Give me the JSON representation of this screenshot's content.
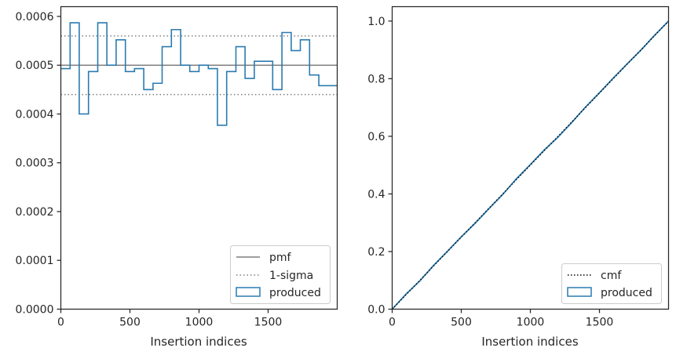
{
  "chart_data": [
    {
      "type": "histogram-step",
      "xlabel": "Insertion indices",
      "ylabel": "",
      "xlim": [
        0,
        2000
      ],
      "ylim": [
        0,
        0.00062
      ],
      "xticks": [
        0,
        500,
        1000,
        1500
      ],
      "yticks": [
        0.0,
        0.0001,
        0.0002,
        0.0003,
        0.0004,
        0.0005,
        0.0006
      ],
      "ytick_labels": [
        "0.0000",
        "0.0001",
        "0.0002",
        "0.0003",
        "0.0004",
        "0.0005",
        "0.0006"
      ],
      "bin_edges": [
        0,
        67,
        133,
        200,
        267,
        333,
        400,
        467,
        533,
        600,
        667,
        733,
        800,
        867,
        933,
        1000,
        1067,
        1133,
        1200,
        1267,
        1333,
        1400,
        1467,
        1533,
        1600,
        1667,
        1733,
        1800,
        1867,
        1933,
        2000
      ],
      "series": [
        {
          "name": "pmf",
          "style": "solid",
          "color": "#7f7f7f",
          "value": 0.0005
        },
        {
          "name": "1-sigma",
          "style": "dotted",
          "color": "#7f7f7f",
          "values": [
            0.00044,
            0.00056
          ]
        },
        {
          "name": "produced",
          "style": "step",
          "color": "#2b7bb0",
          "values": [
            0.000493,
            0.000587,
            0.0004,
            0.000487,
            0.000587,
            0.0005,
            0.000552,
            0.000487,
            0.000493,
            0.00045,
            0.000463,
            0.000538,
            0.000573,
            0.0005,
            0.000487,
            0.0005,
            0.000493,
            0.000377,
            0.000487,
            0.000538,
            0.000473,
            0.000508,
            0.000508,
            0.00045,
            0.000567,
            0.00053,
            0.000552,
            0.00048,
            0.000458,
            0.000458
          ]
        }
      ],
      "legend": {
        "position": "bottom-right",
        "entries": [
          "pmf",
          "1-sigma",
          "produced"
        ]
      },
      "grid": false
    },
    {
      "type": "line",
      "xlabel": "Insertion indices",
      "ylabel": "",
      "xlim": [
        0,
        2000
      ],
      "ylim": [
        0,
        1.05
      ],
      "xticks": [
        0,
        500,
        1000,
        1500
      ],
      "yticks": [
        0.0,
        0.2,
        0.4,
        0.6,
        0.8,
        1.0
      ],
      "ytick_labels": [
        "0.0",
        "0.2",
        "0.4",
        "0.6",
        "0.8",
        "1.0"
      ],
      "series": [
        {
          "name": "cmf",
          "style": "dotted",
          "color": "#000000",
          "x": [
            0,
            2000
          ],
          "y": [
            0,
            1.0
          ]
        },
        {
          "name": "produced",
          "style": "solid",
          "color": "#2b7bb0",
          "x": [
            0,
            100,
            200,
            300,
            400,
            500,
            600,
            700,
            800,
            900,
            1000,
            1100,
            1200,
            1300,
            1400,
            1500,
            1600,
            1700,
            1800,
            1900,
            2000
          ],
          "y": [
            0,
            0.052,
            0.098,
            0.152,
            0.201,
            0.251,
            0.298,
            0.349,
            0.398,
            0.453,
            0.502,
            0.552,
            0.597,
            0.648,
            0.702,
            0.751,
            0.802,
            0.851,
            0.899,
            0.951,
            1.0
          ]
        }
      ],
      "legend": {
        "position": "bottom-right",
        "entries": [
          "cmf",
          "produced"
        ]
      },
      "grid": false
    }
  ]
}
